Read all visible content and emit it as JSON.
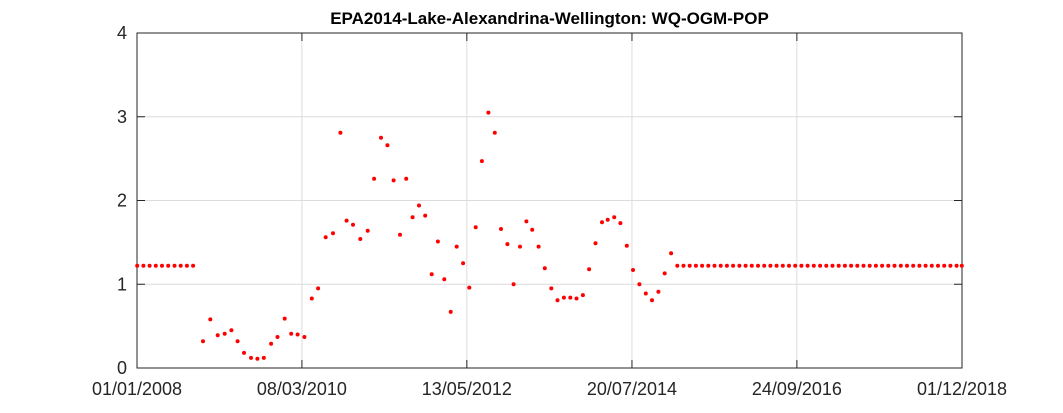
{
  "chart_data": {
    "type": "scatter",
    "title": "EPA2014-Lake-Alexandrina-Wellington: WQ-OGM-POP",
    "xlabel": "",
    "ylabel": "",
    "x_axis_type": "date",
    "xlim": [
      "2008-01-01",
      "2018-12-01"
    ],
    "ylim": [
      0,
      4
    ],
    "x_ticks": [
      "2008-01-01",
      "2010-03-08",
      "2012-05-13",
      "2014-07-20",
      "2016-09-24",
      "2018-12-01"
    ],
    "x_tick_labels": [
      "01/01/2008",
      "08/03/2010",
      "13/05/2012",
      "20/07/2014",
      "24/09/2016",
      "01/12/2018"
    ],
    "y_ticks": [
      0,
      1,
      2,
      3,
      4
    ],
    "y_tick_labels": [
      "0",
      "1",
      "2",
      "3",
      "4"
    ],
    "grid": true,
    "marker_color": "#ff0000",
    "series": [
      {
        "points": [
          [
            "2008-01-02",
            1.22
          ],
          [
            "2008-02-01",
            1.22
          ],
          [
            "2008-03-02",
            1.22
          ],
          [
            "2008-04-01",
            1.22
          ],
          [
            "2008-05-01",
            1.22
          ],
          [
            "2008-05-31",
            1.22
          ],
          [
            "2008-06-30",
            1.22
          ],
          [
            "2008-07-30",
            1.22
          ],
          [
            "2008-08-29",
            1.22
          ],
          [
            "2008-09-28",
            1.22
          ],
          [
            "2008-11-15",
            0.32
          ],
          [
            "2008-12-20",
            0.58
          ],
          [
            "2009-01-25",
            0.39
          ],
          [
            "2009-02-28",
            0.41
          ],
          [
            "2009-04-01",
            0.45
          ],
          [
            "2009-05-01",
            0.32
          ],
          [
            "2009-06-01",
            0.18
          ],
          [
            "2009-07-05",
            0.12
          ],
          [
            "2009-08-05",
            0.11
          ],
          [
            "2009-09-05",
            0.12
          ],
          [
            "2009-10-10",
            0.29
          ],
          [
            "2009-11-10",
            0.37
          ],
          [
            "2009-12-15",
            0.59
          ],
          [
            "2010-01-15",
            0.41
          ],
          [
            "2010-02-15",
            0.4
          ],
          [
            "2010-03-20",
            0.37
          ],
          [
            "2010-04-25",
            0.83
          ],
          [
            "2010-05-25",
            0.95
          ],
          [
            "2010-07-01",
            1.56
          ],
          [
            "2010-08-05",
            1.61
          ],
          [
            "2010-09-10",
            2.81
          ],
          [
            "2010-10-10",
            1.76
          ],
          [
            "2010-11-10",
            1.71
          ],
          [
            "2010-12-15",
            1.54
          ],
          [
            "2011-01-20",
            1.64
          ],
          [
            "2011-02-20",
            2.26
          ],
          [
            "2011-03-25",
            2.75
          ],
          [
            "2011-04-25",
            2.66
          ],
          [
            "2011-05-25",
            2.24
          ],
          [
            "2011-06-25",
            1.59
          ],
          [
            "2011-07-25",
            2.26
          ],
          [
            "2011-08-25",
            1.8
          ],
          [
            "2011-09-25",
            1.94
          ],
          [
            "2011-10-25",
            1.82
          ],
          [
            "2011-11-25",
            1.12
          ],
          [
            "2011-12-25",
            1.51
          ],
          [
            "2012-01-25",
            1.06
          ],
          [
            "2012-02-25",
            0.67
          ],
          [
            "2012-03-25",
            1.45
          ],
          [
            "2012-04-25",
            1.25
          ],
          [
            "2012-05-25",
            0.96
          ],
          [
            "2012-06-25",
            1.68
          ],
          [
            "2012-07-25",
            2.47
          ],
          [
            "2012-08-25",
            3.05
          ],
          [
            "2012-09-25",
            2.81
          ],
          [
            "2012-10-25",
            1.66
          ],
          [
            "2012-11-25",
            1.48
          ],
          [
            "2012-12-25",
            1.0
          ],
          [
            "2013-01-25",
            1.45
          ],
          [
            "2013-02-25",
            1.75
          ],
          [
            "2013-03-25",
            1.65
          ],
          [
            "2013-04-25",
            1.45
          ],
          [
            "2013-05-25",
            1.19
          ],
          [
            "2013-06-25",
            0.95
          ],
          [
            "2013-07-25",
            0.81
          ],
          [
            "2013-08-25",
            0.84
          ],
          [
            "2013-09-25",
            0.84
          ],
          [
            "2013-10-25",
            0.83
          ],
          [
            "2013-11-25",
            0.87
          ],
          [
            "2013-12-25",
            1.18
          ],
          [
            "2014-01-25",
            1.49
          ],
          [
            "2014-02-25",
            1.74
          ],
          [
            "2014-03-25",
            1.77
          ],
          [
            "2014-04-25",
            1.8
          ],
          [
            "2014-05-25",
            1.73
          ],
          [
            "2014-06-25",
            1.46
          ],
          [
            "2014-07-25",
            1.17
          ],
          [
            "2014-08-25",
            1.0
          ],
          [
            "2014-09-25",
            0.89
          ],
          [
            "2014-10-25",
            0.81
          ],
          [
            "2014-11-25",
            0.91
          ],
          [
            "2014-12-25",
            1.13
          ],
          [
            "2015-01-25",
            1.37
          ],
          [
            "2015-02-24",
            1.22
          ],
          [
            "2015-03-26",
            1.22
          ],
          [
            "2015-04-25",
            1.22
          ],
          [
            "2015-05-25",
            1.22
          ],
          [
            "2015-06-24",
            1.22
          ],
          [
            "2015-07-24",
            1.22
          ],
          [
            "2015-08-23",
            1.22
          ],
          [
            "2015-09-22",
            1.22
          ],
          [
            "2015-10-22",
            1.22
          ],
          [
            "2015-11-21",
            1.22
          ],
          [
            "2015-12-21",
            1.22
          ],
          [
            "2016-01-20",
            1.22
          ],
          [
            "2016-02-19",
            1.22
          ],
          [
            "2016-03-20",
            1.22
          ],
          [
            "2016-04-19",
            1.22
          ],
          [
            "2016-05-19",
            1.22
          ],
          [
            "2016-06-18",
            1.22
          ],
          [
            "2016-07-18",
            1.22
          ],
          [
            "2016-08-17",
            1.22
          ],
          [
            "2016-09-16",
            1.22
          ],
          [
            "2016-10-16",
            1.22
          ],
          [
            "2016-11-15",
            1.22
          ],
          [
            "2016-12-15",
            1.22
          ],
          [
            "2017-01-14",
            1.22
          ],
          [
            "2017-02-13",
            1.22
          ],
          [
            "2017-03-15",
            1.22
          ],
          [
            "2017-04-14",
            1.22
          ],
          [
            "2017-05-14",
            1.22
          ],
          [
            "2017-06-13",
            1.22
          ],
          [
            "2017-07-13",
            1.22
          ],
          [
            "2017-08-12",
            1.22
          ],
          [
            "2017-09-11",
            1.22
          ],
          [
            "2017-10-11",
            1.22
          ],
          [
            "2017-11-10",
            1.22
          ],
          [
            "2017-12-10",
            1.22
          ],
          [
            "2018-01-09",
            1.22
          ],
          [
            "2018-02-08",
            1.22
          ],
          [
            "2018-03-10",
            1.22
          ],
          [
            "2018-04-09",
            1.22
          ],
          [
            "2018-05-09",
            1.22
          ],
          [
            "2018-06-08",
            1.22
          ],
          [
            "2018-07-08",
            1.22
          ],
          [
            "2018-08-07",
            1.22
          ],
          [
            "2018-09-06",
            1.22
          ],
          [
            "2018-10-06",
            1.22
          ],
          [
            "2018-11-05",
            1.22
          ],
          [
            "2018-11-30",
            1.22
          ]
        ]
      }
    ]
  }
}
